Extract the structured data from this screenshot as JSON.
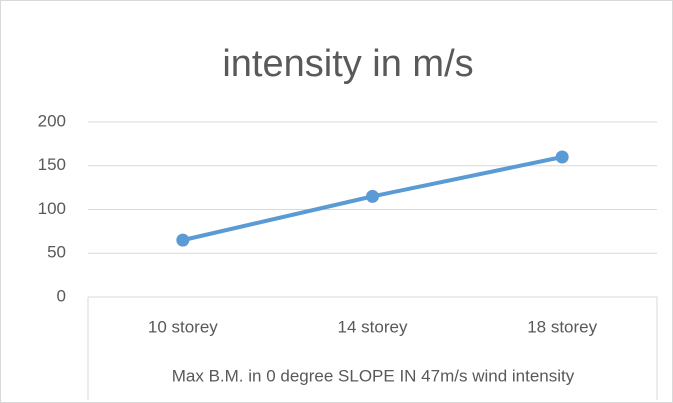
{
  "chart_data": {
    "type": "line",
    "title": "intensity in m/s",
    "x_label": "Max B.M. in 0 degree SLOPE IN 47m/s wind intensity",
    "categories": [
      "10 storey",
      "14 storey",
      "18 storey"
    ],
    "series": [
      {
        "name": "intensity in m/s",
        "color": "#5b9bd5",
        "values": [
          65,
          115,
          160
        ]
      }
    ],
    "ylim": [
      0,
      200
    ],
    "yticks": [
      0,
      50,
      100,
      150,
      200
    ],
    "grid": true
  }
}
